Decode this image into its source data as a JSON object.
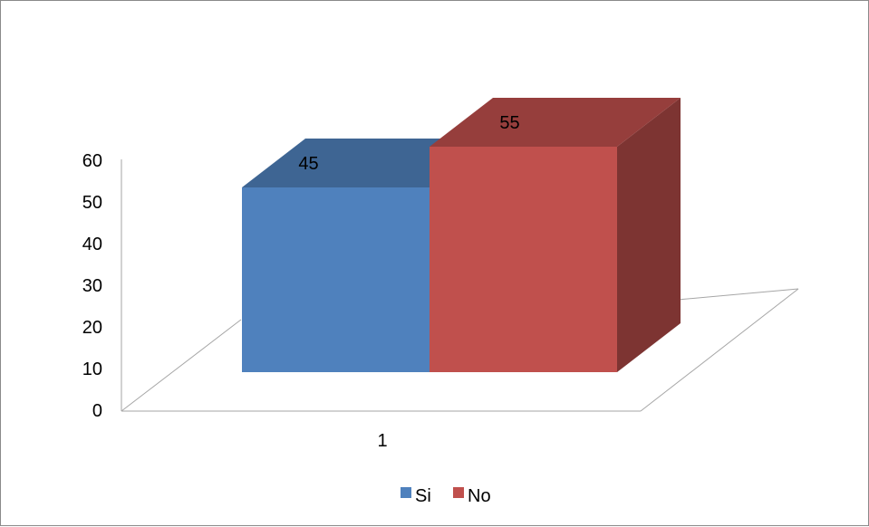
{
  "chart_data": {
    "type": "bar",
    "style": "3d-clustered-column",
    "categories": [
      "1"
    ],
    "series": [
      {
        "name": "Si",
        "values": [
          45
        ],
        "color": "#4F81BD"
      },
      {
        "name": "No",
        "values": [
          55
        ],
        "color": "#C0504D"
      }
    ],
    "ylim": [
      0,
      60
    ],
    "yticks": [
      "0",
      "10",
      "20",
      "30",
      "40",
      "50",
      "60"
    ],
    "data_labels": [
      "45",
      "55"
    ],
    "legend": {
      "position": "bottom",
      "entries": [
        "Si",
        "No"
      ]
    },
    "grid": false
  }
}
